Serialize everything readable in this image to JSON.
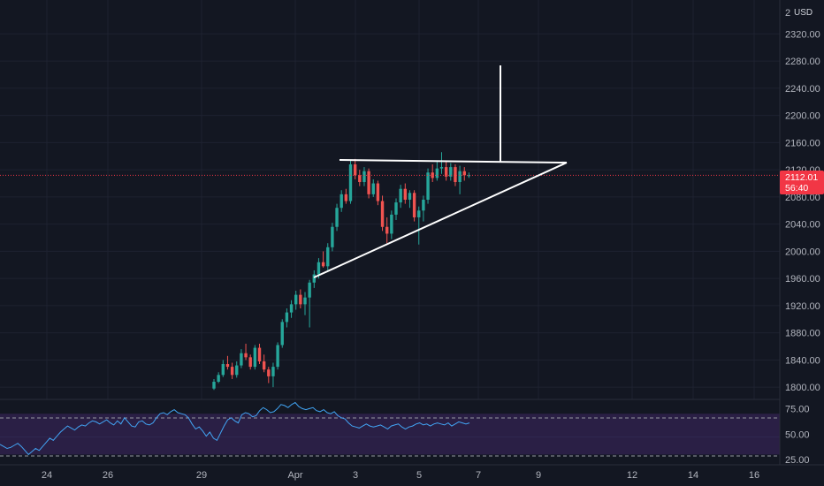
{
  "currency_label": "USD",
  "price_axis_top_label": "2",
  "price_badge": {
    "price": "2112.01",
    "countdown": "56:40",
    "color": "#f23645"
  },
  "colors": {
    "background": "#131722",
    "grid": "#1e2230",
    "up_candle": "#26a69a",
    "down_candle": "#ef5350",
    "rsi_line": "#42a5f5",
    "rsi_band": "#2a1f45",
    "pattern_lines": "#ffffff",
    "axis_text": "#b2b5be"
  },
  "chart_data": [
    {
      "type": "candlestick",
      "title": "",
      "xlabel": "",
      "ylabel": "",
      "x_tick_labels": [
        "24",
        "26",
        "29",
        "Apr",
        "3",
        "5",
        "7",
        "9",
        "12",
        "14",
        "16"
      ],
      "y_tick_labels": [
        "1800.00",
        "1840.00",
        "1880.00",
        "1920.00",
        "1960.00",
        "2000.00",
        "2040.00",
        "2080.00",
        "2120.00",
        "2160.00",
        "2200.00",
        "2240.00",
        "2280.00",
        "2320.00"
      ],
      "ylim": [
        1782,
        2370
      ],
      "grid": true,
      "last_price": 2112.01,
      "candles": [
        [
          1798,
          1812,
          1796,
          1808
        ],
        [
          1808,
          1822,
          1806,
          1818
        ],
        [
          1818,
          1840,
          1815,
          1834
        ],
        [
          1834,
          1846,
          1826,
          1830
        ],
        [
          1830,
          1836,
          1812,
          1818
        ],
        [
          1818,
          1838,
          1814,
          1832
        ],
        [
          1832,
          1856,
          1828,
          1850
        ],
        [
          1850,
          1864,
          1840,
          1844
        ],
        [
          1844,
          1848,
          1826,
          1830
        ],
        [
          1830,
          1862,
          1826,
          1858
        ],
        [
          1858,
          1864,
          1834,
          1838
        ],
        [
          1838,
          1848,
          1822,
          1826
        ],
        [
          1826,
          1830,
          1806,
          1816
        ],
        [
          1816,
          1836,
          1800,
          1830
        ],
        [
          1830,
          1866,
          1826,
          1862
        ],
        [
          1862,
          1900,
          1858,
          1896
        ],
        [
          1896,
          1916,
          1888,
          1910
        ],
        [
          1910,
          1928,
          1902,
          1922
        ],
        [
          1922,
          1942,
          1914,
          1936
        ],
        [
          1936,
          1944,
          1916,
          1922
        ],
        [
          1922,
          1940,
          1906,
          1932
        ],
        [
          1932,
          1958,
          1888,
          1954
        ],
        [
          1954,
          1972,
          1946,
          1966
        ],
        [
          1966,
          1990,
          1960,
          1984
        ],
        [
          1984,
          2000,
          1976,
          1978
        ],
        [
          1978,
          2012,
          1972,
          2006
        ],
        [
          2006,
          2042,
          2000,
          2036
        ],
        [
          2036,
          2070,
          2030,
          2064
        ],
        [
          2064,
          2090,
          2058,
          2084
        ],
        [
          2084,
          2092,
          2070,
          2074
        ],
        [
          2074,
          2134,
          2070,
          2128
        ],
        [
          2128,
          2136,
          2106,
          2112
        ],
        [
          2112,
          2120,
          2096,
          2102
        ],
        [
          2102,
          2124,
          2096,
          2118
        ],
        [
          2118,
          2122,
          2078,
          2084
        ],
        [
          2084,
          2106,
          2080,
          2100
        ],
        [
          2100,
          2104,
          2068,
          2074
        ],
        [
          2074,
          2082,
          2030,
          2036
        ],
        [
          2036,
          2050,
          2012,
          2026
        ],
        [
          2026,
          2060,
          2018,
          2054
        ],
        [
          2054,
          2078,
          2046,
          2072
        ],
        [
          2072,
          2098,
          2064,
          2092
        ],
        [
          2092,
          2100,
          2070,
          2076
        ],
        [
          2076,
          2090,
          2064,
          2086
        ],
        [
          2086,
          2090,
          2044,
          2050
        ],
        [
          2050,
          2066,
          2010,
          2060
        ],
        [
          2060,
          2082,
          2044,
          2076
        ],
        [
          2076,
          2122,
          2070,
          2116
        ],
        [
          2116,
          2128,
          2102,
          2108
        ],
        [
          2108,
          2134,
          2104,
          2122
        ],
        [
          2122,
          2146,
          2114,
          2124
        ],
        [
          2124,
          2132,
          2104,
          2110
        ],
        [
          2110,
          2130,
          2104,
          2124
        ],
        [
          2124,
          2128,
          2096,
          2102
        ],
        [
          2102,
          2126,
          2084,
          2118
        ],
        [
          2118,
          2124,
          2104,
          2112
        ],
        [
          2112,
          2116,
          2108,
          2112.01
        ]
      ]
    },
    {
      "type": "line",
      "title": "",
      "y_tick_labels": [
        "25.00",
        "50.00",
        "75.00"
      ],
      "ylim": [
        20,
        84
      ],
      "band": [
        30,
        70
      ],
      "series": [
        {
          "values": [
            40,
            38,
            36,
            37,
            39,
            41,
            38,
            34,
            30,
            33,
            36,
            34,
            38,
            42,
            46,
            44,
            48,
            52,
            55,
            58,
            56,
            54,
            57,
            59,
            58,
            61,
            63,
            62,
            60,
            62,
            64,
            61,
            59,
            63,
            60,
            66,
            62,
            58,
            57,
            62,
            63,
            60,
            59,
            61,
            66,
            70,
            71,
            69,
            72,
            74,
            71,
            70,
            69,
            66,
            60,
            55,
            57,
            53,
            48,
            52,
            46,
            44,
            51,
            58,
            64,
            66,
            63,
            61,
            69,
            71,
            70,
            67,
            68,
            73,
            76,
            74,
            71,
            72,
            75,
            79,
            78,
            76,
            79,
            81,
            77,
            75,
            74,
            75,
            76,
            73,
            72,
            74,
            71,
            70,
            72,
            68,
            66,
            65,
            61,
            58,
            57,
            56,
            58,
            60,
            58,
            57,
            58,
            59,
            57,
            55,
            58,
            59,
            60,
            57,
            55,
            57,
            58,
            60,
            61,
            59,
            60,
            58,
            60,
            61,
            60,
            59,
            61,
            58,
            60,
            62,
            61,
            60,
            61
          ]
        }
      ]
    }
  ]
}
